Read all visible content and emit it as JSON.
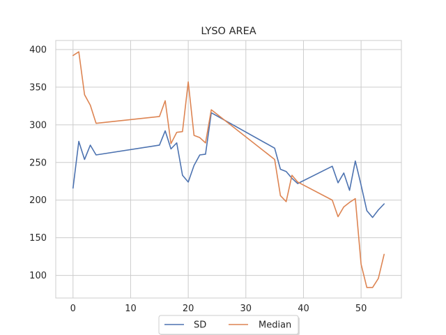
{
  "chart_data": {
    "type": "line",
    "title": "LYSO AREA",
    "xlabel": "",
    "ylabel": "",
    "xlim": [
      -3,
      57
    ],
    "ylim": [
      70,
      412
    ],
    "xticks": [
      0,
      10,
      20,
      30,
      40,
      50
    ],
    "yticks": [
      100,
      150,
      200,
      250,
      300,
      350,
      400
    ],
    "grid": true,
    "legend_position": "bottom-center",
    "series": [
      {
        "name": "SD",
        "color": "#4c72b0",
        "x": [
          0,
          1,
          2,
          3,
          4,
          15,
          16,
          17,
          18,
          19,
          20,
          21,
          22,
          23,
          24,
          35,
          36,
          37,
          38,
          39,
          45,
          46,
          47,
          48,
          49,
          50,
          51,
          52,
          53,
          54
        ],
        "y": [
          216,
          278,
          254,
          273,
          260,
          273,
          292,
          268,
          276,
          233,
          224,
          246,
          260,
          261,
          316,
          269,
          241,
          238,
          229,
          222,
          245,
          223,
          236,
          213,
          252,
          220,
          186,
          177,
          187,
          195
        ]
      },
      {
        "name": "Median",
        "color": "#dd8452",
        "x": [
          0,
          1,
          2,
          3,
          4,
          15,
          16,
          17,
          18,
          19,
          20,
          21,
          22,
          23,
          24,
          35,
          36,
          37,
          38,
          39,
          45,
          46,
          47,
          48,
          49,
          50,
          51,
          52,
          53,
          54
        ],
        "y": [
          392,
          397,
          340,
          326,
          302,
          311,
          332,
          275,
          290,
          291,
          357,
          286,
          283,
          276,
          320,
          254,
          206,
          198,
          233,
          224,
          200,
          178,
          191,
          197,
          202,
          115,
          84,
          84,
          96,
          128
        ]
      }
    ]
  }
}
